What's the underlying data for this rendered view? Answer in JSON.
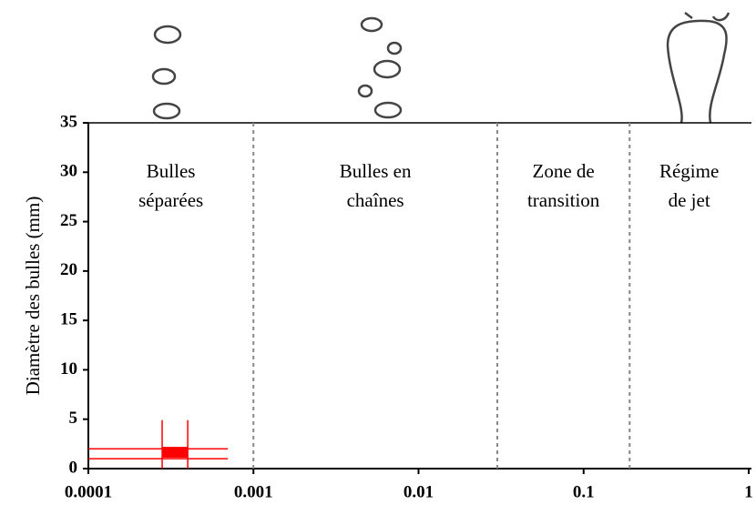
{
  "chart_data": {
    "type": "regime",
    "y_label": "Diamètre des bulles (mm)",
    "xscale": "log",
    "xlim": [
      0.0001,
      1
    ],
    "xticks": [
      0.0001,
      0.001,
      0.01,
      0.1,
      1
    ],
    "ylim": [
      0,
      35
    ],
    "yticks": [
      0,
      5,
      10,
      15,
      20,
      25,
      30,
      35
    ],
    "boundaries": [
      0.001,
      0.03,
      0.19
    ],
    "boundary_color": "#888888",
    "regions": [
      [
        "Bulles",
        "séparées"
      ],
      [
        "Bulles en",
        "chaînes"
      ],
      [
        "Zone de",
        "transition"
      ],
      [
        "Régime",
        "de jet"
      ]
    ],
    "series": [
      {
        "color": "#ff0000",
        "x": [
          0.00028,
          0.0004
        ],
        "y": [
          1.1,
          2.2
        ]
      }
    ],
    "rules": [
      {
        "orientation": "h",
        "at": 2,
        "from": 0.0001,
        "to": 0.0007
      },
      {
        "orientation": "h",
        "at": 1,
        "from": 0.0001,
        "to": 0.0007
      },
      {
        "orientation": "v",
        "at": 0.00028,
        "from": 0,
        "to": 4.9
      },
      {
        "orientation": "v",
        "at": 0.0004,
        "from": 0,
        "to": 4.9
      }
    ]
  }
}
